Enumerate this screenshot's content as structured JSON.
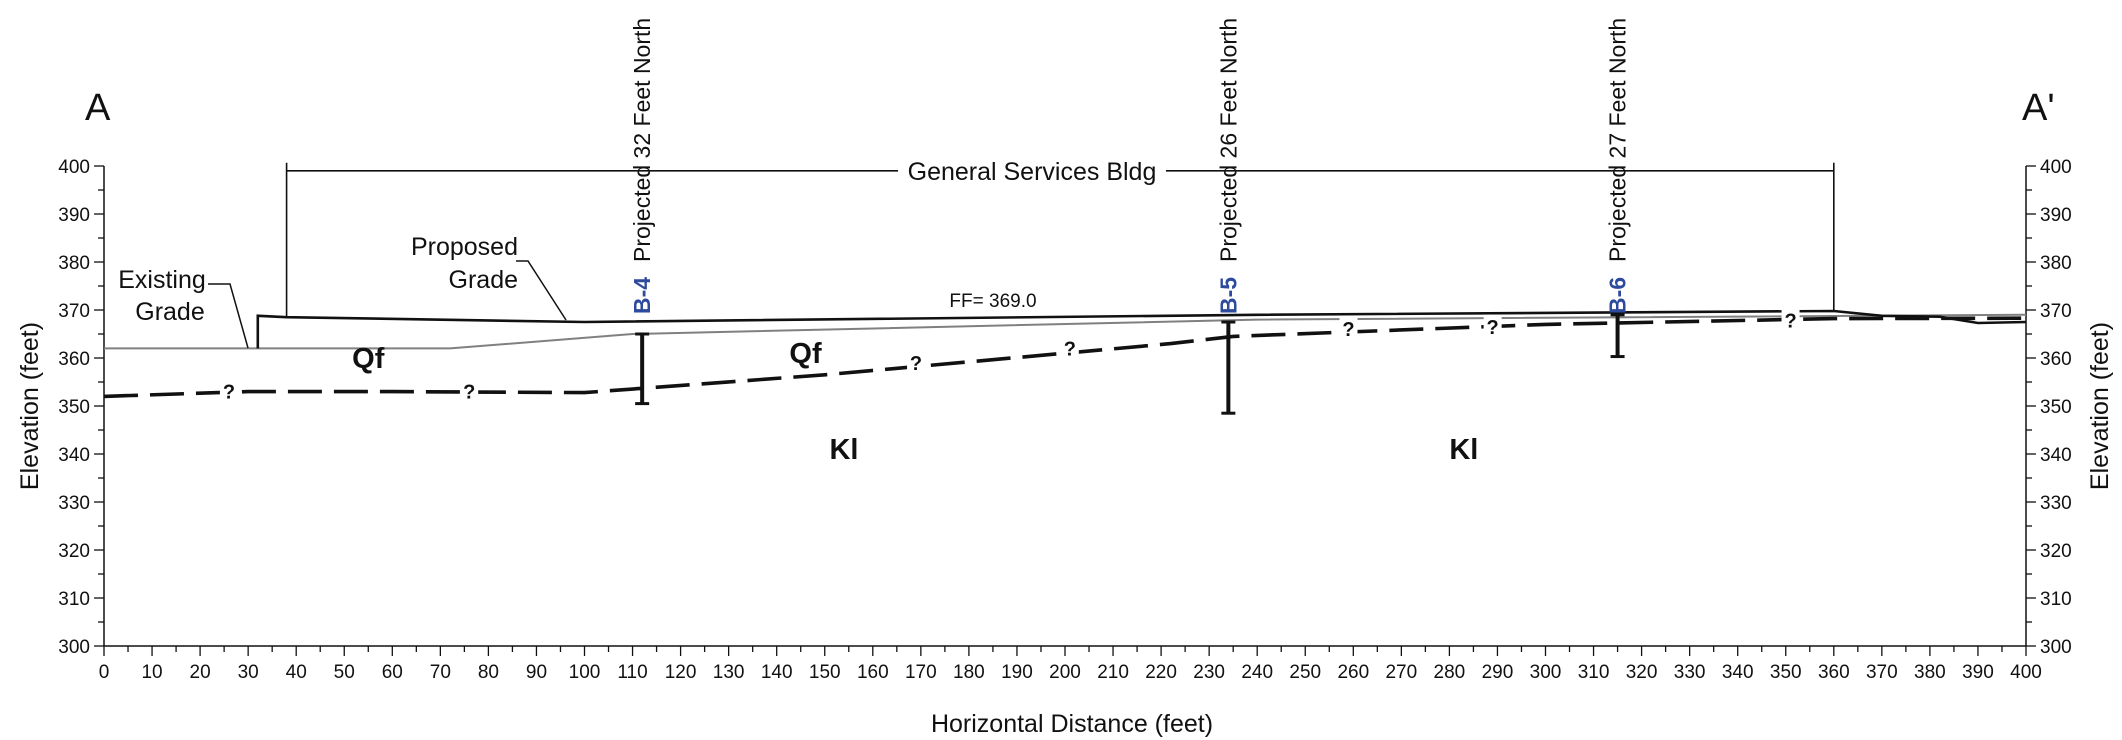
{
  "section": {
    "start_label": "A",
    "end_label": "A'"
  },
  "axes": {
    "x_label": "Horizontal Distance (feet)",
    "y_label_left": "Elevation (feet)",
    "y_label_right": "Elevation (feet)",
    "x_range": [
      0,
      400
    ],
    "y_range": [
      300,
      400
    ],
    "x_major_step": 10,
    "y_major_step": 10,
    "x_ticks": [
      "0",
      "10",
      "20",
      "30",
      "40",
      "50",
      "60",
      "70",
      "80",
      "90",
      "100",
      "110",
      "120",
      "130",
      "140",
      "150",
      "160",
      "170",
      "180",
      "190",
      "200",
      "210",
      "220",
      "230",
      "240",
      "250",
      "260",
      "270",
      "280",
      "290",
      "300",
      "310",
      "320",
      "330",
      "340",
      "350",
      "360",
      "370",
      "380",
      "390",
      "400"
    ],
    "y_ticks": [
      "300",
      "310",
      "320",
      "330",
      "340",
      "350",
      "360",
      "370",
      "380",
      "390",
      "400"
    ]
  },
  "building": {
    "label": "General Services Bldg",
    "x_start": 38,
    "x_end": 360,
    "top_elevation": 399
  },
  "finished_floor": {
    "label": "FF= 369.0"
  },
  "existing_grade": {
    "label_line1": "Existing",
    "label_line2": "Grade",
    "color": "#808080",
    "points": [
      [
        0,
        362
      ],
      [
        72,
        362
      ],
      [
        110,
        365
      ],
      [
        240,
        368
      ],
      [
        400,
        369
      ]
    ]
  },
  "proposed_grade": {
    "label_line1": "Proposed",
    "label_line2": "Grade",
    "color": "#111111",
    "points": [
      [
        32,
        362
      ],
      [
        32,
        368.8
      ],
      [
        38,
        368.5
      ],
      [
        100,
        367.5
      ],
      [
        240,
        369
      ],
      [
        360,
        369.8
      ],
      [
        370,
        368.8
      ],
      [
        382,
        368.6
      ],
      [
        390,
        367.3
      ],
      [
        400,
        367.5
      ]
    ]
  },
  "contact": {
    "color": "#111111",
    "points": [
      [
        0,
        352
      ],
      [
        30,
        353
      ],
      [
        60,
        353
      ],
      [
        100,
        352.8
      ],
      [
        150,
        356.5
      ],
      [
        200,
        361
      ],
      [
        222,
        363
      ],
      [
        235,
        364.5
      ],
      [
        300,
        367
      ],
      [
        360,
        368.2
      ],
      [
        400,
        368.3
      ]
    ],
    "uncertain_marks": [
      {
        "text": "?",
        "x": 26,
        "y": 353
      },
      {
        "text": "?",
        "x": 76,
        "y": 353
      },
      {
        "text": "?",
        "x": 169,
        "y": 359
      },
      {
        "text": "?",
        "x": 201,
        "y": 362
      },
      {
        "text": "?",
        "x": 259,
        "y": 366
      },
      {
        "text": "?",
        "x": 289,
        "y": 366.5
      },
      {
        "text": "?",
        "x": 351,
        "y": 367.8
      }
    ]
  },
  "units": [
    {
      "label": "Qf",
      "x": 55,
      "y": 360
    },
    {
      "label": "Qf",
      "x": 146,
      "y": 361
    },
    {
      "label": "Kl",
      "x": 154,
      "y": 341
    },
    {
      "label": "Kl",
      "x": 283,
      "y": 341
    }
  ],
  "borings": [
    {
      "id": "B-4",
      "note": "Projected 32 Feet North",
      "x": 112,
      "top": 365,
      "bottom": 350.5
    },
    {
      "id": "B-5",
      "note": "Projected 26 Feet North",
      "x": 234,
      "top": 367.5,
      "bottom": 348.5
    },
    {
      "id": "B-6",
      "note": "Projected 27 Feet North",
      "x": 315,
      "top": 369,
      "bottom": 360.3
    }
  ]
}
